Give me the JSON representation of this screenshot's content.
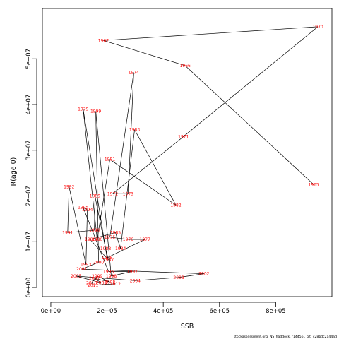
{
  "chart_data": {
    "type": "line",
    "xlabel": "SSB",
    "ylabel": "R(age 0)",
    "xlim": [
      -30000,
      1000000
    ],
    "ylim": [
      -2000000,
      61000000
    ],
    "x_ticks": [
      {
        "value": 0,
        "label": "0e+00"
      },
      {
        "value": 200000,
        "label": "2e+05"
      },
      {
        "value": 400000,
        "label": "4e+05"
      },
      {
        "value": 600000,
        "label": "6e+05"
      },
      {
        "value": 800000,
        "label": "8e+05"
      }
    ],
    "y_ticks": [
      {
        "value": 0,
        "label": "0e+00"
      },
      {
        "value": 10000000,
        "label": "1e+07"
      },
      {
        "value": 20000000,
        "label": "2e+07"
      },
      {
        "value": 30000000,
        "label": "3e+07"
      },
      {
        "value": 40000000,
        "label": "4e+07"
      },
      {
        "value": 50000000,
        "label": "5e+07"
      }
    ],
    "grid": false,
    "line_color": "#000000",
    "label_color": "#ff0000",
    "series": [
      {
        "points": [
          {
            "year": "1965",
            "x": 935000,
            "y": 22500000
          },
          {
            "year": "1966",
            "x": 478000,
            "y": 48500000
          },
          {
            "year": "1967",
            "x": 187000,
            "y": 54000000
          },
          {
            "year": "1970",
            "x": 950000,
            "y": 57000000
          },
          {
            "year": "1971",
            "x": 472000,
            "y": 33000000
          },
          {
            "year": "1972",
            "x": 220000,
            "y": 20500000
          },
          {
            "year": "1973",
            "x": 275000,
            "y": 20500000
          },
          {
            "year": "1974",
            "x": 295000,
            "y": 47000000
          },
          {
            "year": "1975",
            "x": 210000,
            "y": 11000000
          },
          {
            "year": "1976",
            "x": 275000,
            "y": 10500000
          },
          {
            "year": "1977",
            "x": 335000,
            "y": 10500000
          },
          {
            "year": "1978",
            "x": 200000,
            "y": 6500000
          },
          {
            "year": "1979",
            "x": 115000,
            "y": 39000000
          },
          {
            "year": "1980",
            "x": 165000,
            "y": 10500000
          },
          {
            "year": "1981",
            "x": 210000,
            "y": 28000000
          },
          {
            "year": "1982",
            "x": 445000,
            "y": 18000000
          },
          {
            "year": "1983",
            "x": 298000,
            "y": 34500000
          },
          {
            "year": "1984",
            "x": 248000,
            "y": 8500000
          },
          {
            "year": "1985",
            "x": 230000,
            "y": 12000000
          },
          {
            "year": "1986",
            "x": 140000,
            "y": 10500000
          },
          {
            "year": "1987",
            "x": 205000,
            "y": 6000000
          },
          {
            "year": "1988",
            "x": 195000,
            "y": 8500000
          },
          {
            "year": "1989",
            "x": 157000,
            "y": 20000000
          },
          {
            "year": "1990",
            "x": 155000,
            "y": 12500000
          },
          {
            "year": "1991",
            "x": 60000,
            "y": 12000000
          },
          {
            "year": "1992",
            "x": 65000,
            "y": 22000000
          },
          {
            "year": "1993",
            "x": 125000,
            "y": 5000000
          },
          {
            "year": "1994",
            "x": 130000,
            "y": 17000000
          },
          {
            "year": "1995",
            "x": 115000,
            "y": 17500000
          },
          {
            "year": "1996",
            "x": 205000,
            "y": 3500000
          },
          {
            "year": "1997",
            "x": 290000,
            "y": 3500000
          },
          {
            "year": "1998",
            "x": 215000,
            "y": 2500000
          },
          {
            "year": "1999",
            "x": 160000,
            "y": 38500000
          },
          {
            "year": "2000",
            "x": 170000,
            "y": 5500000
          },
          {
            "year": "2001",
            "x": 110000,
            "y": 4000000
          },
          {
            "year": "2002",
            "x": 545000,
            "y": 3000000
          },
          {
            "year": "2003",
            "x": 455000,
            "y": 2200000
          },
          {
            "year": "2004",
            "x": 300000,
            "y": 1500000
          },
          {
            "year": "2005",
            "x": 90000,
            "y": 2500000
          },
          {
            "year": "2006",
            "x": 180000,
            "y": 1000000
          },
          {
            "year": "2007",
            "x": 155000,
            "y": 2000000
          },
          {
            "year": "2008",
            "x": 210000,
            "y": 1200000
          },
          {
            "year": "2009",
            "x": 165000,
            "y": 2500000
          },
          {
            "year": "2010",
            "x": 145000,
            "y": 1000000
          },
          {
            "year": "2011",
            "x": 150000,
            "y": 500000
          },
          {
            "year": "2012",
            "x": 230000,
            "y": 800000
          }
        ]
      }
    ]
  },
  "credit": "stockassessment.org, NS_haddock, r14456 , git: c28bdc2a44ad"
}
